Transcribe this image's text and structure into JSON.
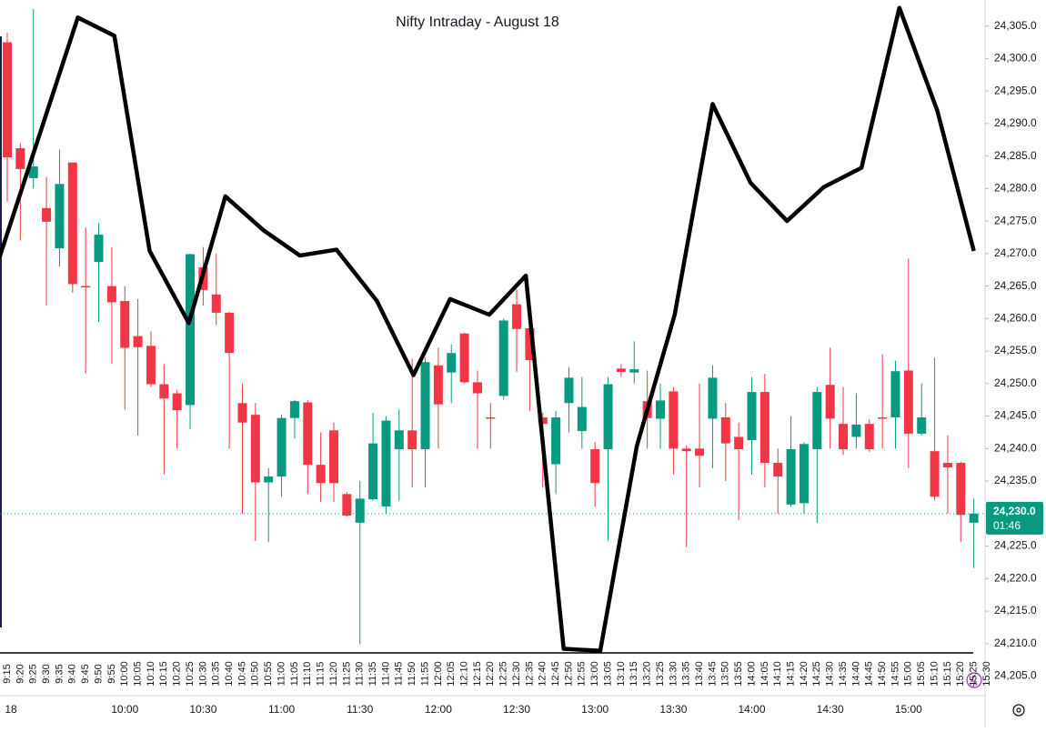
{
  "chart_data": {
    "type": "candlestick",
    "title": "Nifty Intraday - August 18",
    "categories": [
      "9:15",
      "9:20",
      "9:25",
      "9:30",
      "9:35",
      "9:40",
      "9:45",
      "9:50",
      "9:55",
      "10:00",
      "10:05",
      "10:10",
      "10:15",
      "10:20",
      "10:25",
      "10:30",
      "10:35",
      "10:40",
      "10:45",
      "10:50",
      "10:55",
      "11:00",
      "11:05",
      "11:10",
      "11:15",
      "11:20",
      "11:25",
      "11:30",
      "11:35",
      "11:40",
      "11:45",
      "11:50",
      "11:55",
      "12:00",
      "12:05",
      "12:10",
      "12:15",
      "12:20",
      "12:25",
      "12:30",
      "12:35",
      "12:40",
      "12:45",
      "12:50",
      "12:55",
      "13:00",
      "13:05",
      "13:10",
      "13:15",
      "13:20",
      "13:25",
      "13:30",
      "13:35",
      "13:40",
      "13:45",
      "13:50",
      "13:55",
      "14:00",
      "14:05",
      "14:10",
      "14:15",
      "14:20",
      "14:25",
      "14:30",
      "14:35",
      "14:40",
      "14:45",
      "14:50",
      "14:55",
      "15:00",
      "15:05",
      "15:10",
      "15:15",
      "15:20",
      "15:25",
      "15:30"
    ],
    "major_labels": [
      "18",
      null,
      null,
      null,
      null,
      null,
      null,
      null,
      null,
      "10:00",
      null,
      null,
      null,
      null,
      null,
      "10:30",
      null,
      null,
      null,
      null,
      null,
      "11:00",
      null,
      null,
      null,
      null,
      null,
      "11:30",
      null,
      null,
      null,
      null,
      null,
      "12:00",
      null,
      null,
      null,
      null,
      null,
      "12:30",
      null,
      null,
      null,
      null,
      null,
      "13:00",
      null,
      null,
      null,
      null,
      null,
      "13:30",
      null,
      null,
      null,
      null,
      null,
      "14:00",
      null,
      null,
      null,
      null,
      null,
      "14:30",
      null,
      null,
      null,
      null,
      null,
      "15:00",
      null,
      null,
      null,
      null,
      null,
      null
    ],
    "open": [
      24302.5,
      24286.2,
      24281.6,
      24277,
      24270.8,
      24284,
      24265,
      24268.7,
      24265,
      24262.7,
      24257.3,
      24255.8,
      24249.9,
      24248.5,
      24246.7,
      24267.9,
      24263.7,
      24260.9,
      24247,
      24245.2,
      24234.8,
      24235.7,
      24244.7,
      24247.1,
      24237.5,
      24242.8,
      24233,
      24228.6,
      24232.2,
      24231.1,
      24239.9,
      24242.8,
      24239.9,
      24252.8,
      24251.7,
      24257.7,
      24250.2,
      24244.8,
      24248.1,
      24262.2,
      24258.5,
      24244.8,
      24237.6,
      24247,
      24242.7,
      24239.9,
      24239.9,
      24252.3,
      24251.7,
      24247.3,
      24244.6,
      24248.8,
      24240,
      24240,
      24244.6,
      24244.8,
      24241.8,
      24241.3,
      24248.7,
      24237.8,
      24231.4,
      24231.6,
      24239.9,
      24249.8,
      24243.8,
      24241.8,
      24243.8,
      24244.8,
      24244.8,
      24252,
      24242.3,
      24239.6,
      24237.8,
      24237.8,
      24228.6,
      null
    ],
    "high": [
      24304,
      24287,
      24307.6,
      24281.8,
      24286,
      24284,
      24274,
      24274.7,
      24271,
      24265,
      24263,
      24258,
      24253,
      24249,
      24270,
      24271,
      24270,
      24261,
      24250,
      24247,
      24237,
      24245.2,
      24247.5,
      24247.5,
      24242.5,
      24244,
      24233.3,
      24235,
      24245.5,
      24245,
      24246,
      24253.8,
      24254,
      24255.5,
      24256,
      24257.8,
      24252,
      24247,
      24260,
      24264.5,
      24260,
      24245.5,
      24245.8,
      24252.5,
      24251,
      24241,
      24251,
      24253,
      24256.5,
      24252,
      24250,
      24249.5,
      24240.5,
      24250,
      24252.8,
      24247,
      24244,
      24251,
      24251.5,
      24240,
      24245,
      24241,
      24249.5,
      24255.5,
      24249.5,
      24248.5,
      24244.5,
      24254.5,
      24253.5,
      24269.2,
      24250,
      24254,
      24242,
      24238,
      24232.3,
      null
    ],
    "low": [
      24278,
      24272,
      24280,
      24262,
      24268,
      24264,
      24251.6,
      24259.5,
      24253,
      24246,
      24242,
      24249.5,
      24236,
      24240,
      24243,
      24262,
      24259,
      24240,
      24230,
      24225.8,
      24225.6,
      24232.6,
      24241.5,
      24233,
      24231.8,
      24231.8,
      24229.5,
      24209.9,
      24232,
      24229.9,
      24232,
      24234,
      24234,
      24240,
      24247,
      24250,
      24240,
      24240,
      24247.5,
      24251.8,
      24245.8,
      24234,
      24233,
      24242.5,
      24240,
      24231,
      24225.8,
      24251,
      24250,
      24240,
      24240,
      24236,
      24224.8,
      24234,
      24237,
      24235,
      24229,
      24236,
      24234,
      24230,
      24231,
      24230,
      24228.6,
      24240,
      24239,
      24240,
      24239.5,
      24240,
      24240,
      24237,
      24242,
      24232,
      24230,
      24225.6,
      24221.6,
      null
    ],
    "close": [
      24284.8,
      24283,
      24283.4,
      24274.9,
      24280.7,
      24265.3,
      24264.8,
      24272.9,
      24262.5,
      24255.5,
      24255.6,
      24249.9,
      24247.7,
      24245.9,
      24269.9,
      24264.4,
      24260.9,
      24254.7,
      24244,
      24234.8,
      24235.7,
      24244.7,
      24247.3,
      24237.5,
      24234.7,
      24234.7,
      24229.7,
      24232.3,
      24240.8,
      24244.3,
      24242.8,
      24239.9,
      24253.3,
      24246.8,
      24254.7,
      24250.2,
      24248.5,
      24244.7,
      24259.7,
      24258.4,
      24253.6,
      24243.8,
      24244.8,
      24250.9,
      24246.4,
      24234.7,
      24249.9,
      24251.8,
      24252.2,
      24244.7,
      24247.4,
      24240,
      24239.6,
      24238.9,
      24250.9,
      24240.8,
      24239.9,
      24248.7,
      24237.8,
      24235.7,
      24239.9,
      24240.7,
      24248.7,
      24244.6,
      24239.9,
      24243.7,
      24239.9,
      24244.7,
      24251.9,
      24242.3,
      24244.8,
      24232.6,
      24237.1,
      24229.8,
      24230,
      null
    ],
    "up_color": "#089981",
    "down_color": "#f23645",
    "overlay": {
      "color": "#000000",
      "x": [
        -0.6,
        5.4,
        8.2,
        10.9,
        13.9,
        16.7,
        19.6,
        22.4,
        25.2,
        28.3,
        31.1,
        33.9,
        36.9,
        39.7,
        42.6,
        45.4,
        48.2,
        51.1,
        54,
        56.9,
        59.7,
        62.5,
        65.4,
        68.3,
        71.2,
        74
      ],
      "values": [
        24269.4,
        24306.3,
        24303.5,
        24270.4,
        24259.3,
        24278.8,
        24273.6,
        24269.7,
        24270.6,
        24262.7,
        24251.3,
        24263,
        24260.6,
        24266.6,
        24209.2,
        24208.9,
        24240.4,
        24260.6,
        24293,
        24280.9,
        24275,
        24280.2,
        24283.2,
        24307.8,
        24292,
        24270.4
      ]
    },
    "last_price": {
      "value": 24230,
      "label": "24,230.0",
      "countdown": "01:46",
      "color": "#089981"
    },
    "ylim": [
      24202,
      24309
    ],
    "yticks": [
      {
        "value": 24205,
        "label": "24,205.0"
      },
      {
        "value": 24210,
        "label": "24,210.0"
      },
      {
        "value": 24215,
        "label": "24,215.0"
      },
      {
        "value": 24220,
        "label": "24,220.0"
      },
      {
        "value": 24225,
        "label": "24,225.0"
      },
      {
        "value": 24230,
        "label": "24,230.0"
      },
      {
        "value": 24235,
        "label": "24,235.0"
      },
      {
        "value": 24240,
        "label": "24,240.0"
      },
      {
        "value": 24245,
        "label": "24,245.0"
      },
      {
        "value": 24250,
        "label": "24,250.0"
      },
      {
        "value": 24255,
        "label": "24,255.0"
      },
      {
        "value": 24260,
        "label": "24,260.0"
      },
      {
        "value": 24265,
        "label": "24,265.0"
      },
      {
        "value": 24270,
        "label": "24,270.0"
      },
      {
        "value": 24275,
        "label": "24,275.0"
      },
      {
        "value": 24280,
        "label": "24,280.0"
      },
      {
        "value": 24285,
        "label": "24,285.0"
      },
      {
        "value": 24290,
        "label": "24,290.0"
      },
      {
        "value": 24295,
        "label": "24,295.0"
      },
      {
        "value": 24300,
        "label": "24,300.0"
      },
      {
        "value": 24305,
        "label": "24,305.0"
      }
    ],
    "grid": false
  }
}
